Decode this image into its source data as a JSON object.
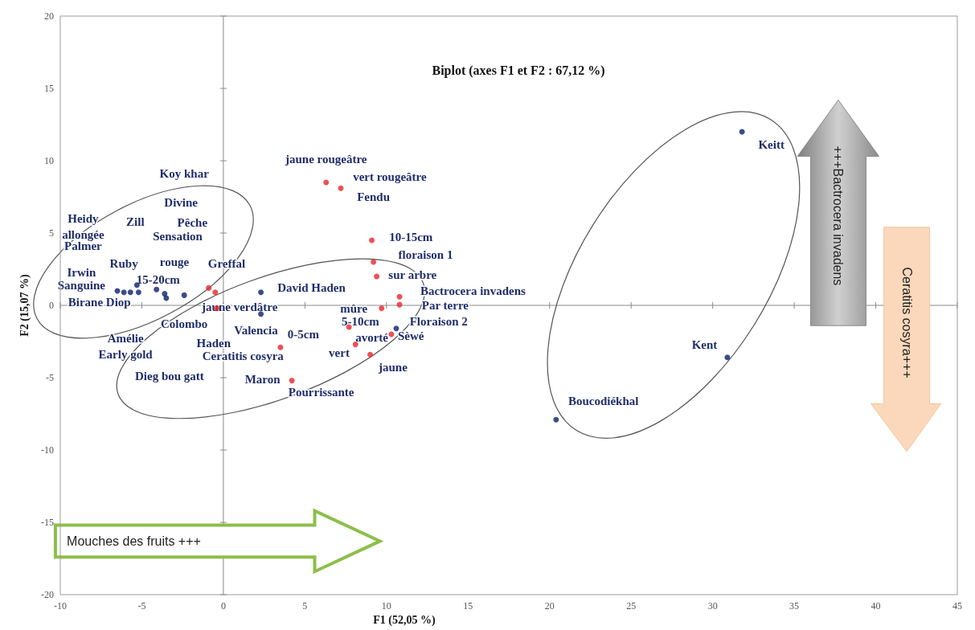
{
  "chart_data": {
    "type": "scatter",
    "title": "Biplot (axes F1 et F2 : 67,12 %)",
    "xlabel": "F1 (52,05 %)",
    "ylabel": "F2 (15,07 %)",
    "xlim": [
      -10,
      45
    ],
    "xticks": [
      -10,
      -5,
      0,
      5,
      10,
      15,
      20,
      25,
      30,
      35,
      40,
      45
    ],
    "ylim": [
      -20,
      20
    ],
    "yticks": [
      -20,
      -15,
      -10,
      -5,
      0,
      5,
      10,
      15,
      20
    ],
    "marker": "circle",
    "series": [
      {
        "color": "#0b1f6e",
        "x": [
          -6.5,
          -6.1,
          -5.7,
          -5.3,
          -5.2,
          -4.1,
          -3.6,
          -3.5,
          -2.4,
          2.3,
          2.3,
          10.6,
          31.8,
          30.9,
          20.4
        ],
        "values": [
          1.0,
          0.9,
          0.9,
          1.4,
          0.9,
          1.1,
          0.8,
          0.5,
          0.7,
          0.9,
          -0.6,
          -1.6,
          12.0,
          -3.6,
          -7.9
        ]
      },
      {
        "color": "#e8262b",
        "x": [
          6.3,
          7.2,
          9.1,
          9.2,
          9.4,
          10.8,
          10.8,
          9.7,
          7.7,
          8.1,
          9.0,
          3.5,
          4.2,
          10.3,
          -0.9,
          -0.5,
          -0.4
        ],
        "values": [
          8.5,
          8.1,
          4.5,
          3.0,
          2.0,
          0.6,
          0.05,
          -0.2,
          -1.5,
          -2.7,
          -3.4,
          -2.9,
          -5.2,
          -2.0,
          1.2,
          0.9,
          -0.2
        ]
      }
    ],
    "annotations": [
      "Mouches des fruits +++",
      "+++Bactrocera invadens",
      "Ceratitis cosyra+++",
      "Koy khar",
      "Divine",
      "Heidy",
      "Zill",
      "Pêche",
      "allongée",
      "Sensation",
      "Palmer",
      "Ruby",
      "rouge",
      "Greffal",
      "Irwin",
      "15-20cm",
      "Sanguine",
      "Birane Diop",
      "jaune verdâtre",
      "Colombo",
      "Valencia",
      "Amélie",
      "Haden",
      "Early gold",
      "Dieg bou gatt",
      "David Haden",
      "Sèwé",
      "Keitt",
      "Kent",
      "Boucodiékhal",
      "jaune rougeâtre",
      "vert rougeâtre",
      "Fendu",
      "10-15cm",
      "floraison 1",
      "sur arbre",
      "Bactrocera invadens",
      "Par terre",
      "mûre",
      "Floraison 2",
      "5-10cm",
      "0-5cm",
      "avorté",
      "vert",
      "Ceratitis cosyra",
      "jaune",
      "Maron",
      "Pourrissante"
    ]
  }
}
